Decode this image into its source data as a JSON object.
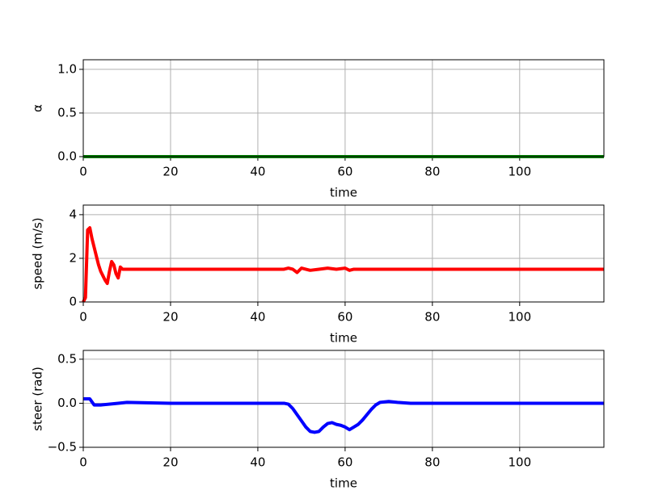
{
  "chart_data": [
    {
      "type": "line",
      "ylabel": "α",
      "xlabel": "time",
      "x": [
        0,
        119.3
      ],
      "values": [
        0,
        0
      ],
      "color": "#008000",
      "xlim": [
        0,
        119.3
      ],
      "ylim": [
        0,
        1.11
      ],
      "xticks": [
        0,
        20,
        40,
        60,
        80,
        100
      ],
      "yticks": [
        {
          "value": 0,
          "label": "0.0"
        },
        {
          "value": 0.5,
          "label": "0.5"
        },
        {
          "value": 1,
          "label": "1.0"
        }
      ],
      "grid": true
    },
    {
      "type": "line",
      "ylabel": "speed (m/s)",
      "xlabel": "time",
      "x": [
        0,
        0.5,
        1,
        1.5,
        2,
        2.5,
        3,
        3.5,
        4,
        4.5,
        5,
        5.5,
        6,
        6.5,
        7,
        7.5,
        8,
        8.5,
        9,
        10,
        12,
        15,
        20,
        30,
        40,
        46,
        47,
        48,
        49,
        50,
        52,
        54,
        56,
        58,
        60,
        61,
        62,
        64,
        66,
        70,
        80,
        100,
        119.3
      ],
      "values": [
        0,
        0.2,
        3.3,
        3.4,
        2.9,
        2.5,
        2.1,
        1.7,
        1.4,
        1.2,
        1.0,
        0.85,
        1.4,
        1.85,
        1.7,
        1.3,
        1.1,
        1.6,
        1.5,
        1.5,
        1.5,
        1.5,
        1.5,
        1.5,
        1.5,
        1.5,
        1.55,
        1.5,
        1.35,
        1.55,
        1.45,
        1.5,
        1.55,
        1.5,
        1.55,
        1.45,
        1.5,
        1.5,
        1.5,
        1.5,
        1.5,
        1.5,
        1.5
      ],
      "color": "#ff0000",
      "xlim": [
        0,
        119.3
      ],
      "ylim": [
        0,
        4.44
      ],
      "xticks": [
        0,
        20,
        40,
        60,
        80,
        100
      ],
      "yticks": [
        0,
        2,
        4
      ],
      "grid": true
    },
    {
      "type": "line",
      "ylabel": "steer (rad)",
      "xlabel": "time",
      "x": [
        0,
        1.5,
        2.5,
        4,
        8,
        10,
        20,
        40,
        46,
        47,
        48,
        49,
        50,
        51,
        52,
        53,
        54,
        55,
        56,
        57,
        58,
        59,
        60,
        61,
        62,
        63,
        64,
        65,
        66,
        67,
        68,
        70,
        72,
        75,
        80,
        100,
        119.3
      ],
      "values": [
        0.05,
        0.05,
        -0.02,
        -0.02,
        0,
        0.01,
        0,
        0,
        0,
        -0.01,
        -0.06,
        -0.13,
        -0.2,
        -0.27,
        -0.32,
        -0.33,
        -0.32,
        -0.27,
        -0.23,
        -0.22,
        -0.24,
        -0.25,
        -0.27,
        -0.3,
        -0.27,
        -0.24,
        -0.19,
        -0.13,
        -0.07,
        -0.02,
        0.01,
        0.02,
        0.01,
        0,
        0,
        0,
        0
      ],
      "color": "#0000ff",
      "xlim": [
        0,
        119.3
      ],
      "ylim": [
        -0.5,
        0.6
      ],
      "xticks": [
        0,
        20,
        40,
        60,
        80,
        100
      ],
      "yticks": [
        {
          "value": -0.5,
          "label": "−0.5"
        },
        {
          "value": 0,
          "label": "0.0"
        },
        {
          "value": 0.5,
          "label": "0.5"
        }
      ],
      "grid": true
    }
  ]
}
